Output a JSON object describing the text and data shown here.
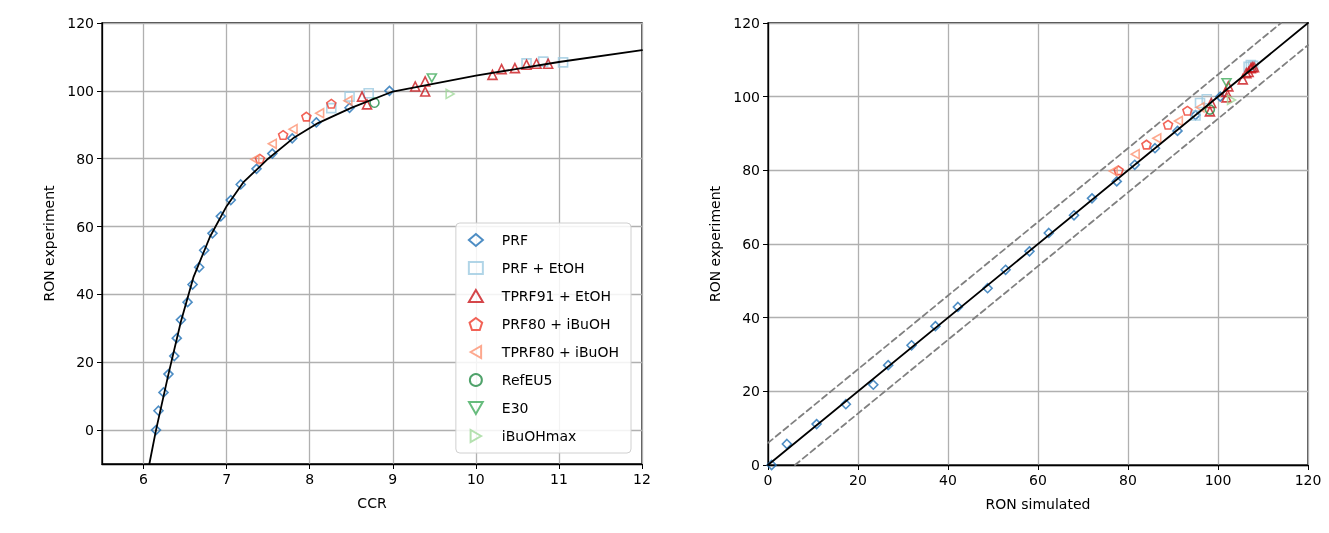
{
  "chart_data": [
    {
      "type": "scatter",
      "xlabel": "CCR",
      "ylabel": "RON experiment",
      "xlim": [
        5.5,
        12
      ],
      "xticks": [
        6,
        7,
        8,
        9,
        10,
        11,
        12
      ],
      "ylim": [
        -10,
        120
      ],
      "yticks": [
        0,
        20,
        40,
        60,
        80,
        100,
        120
      ],
      "grid": true,
      "legend": "bottom right",
      "series": [
        {
          "type": "line",
          "x": [
            6.07,
            6.15,
            6.3,
            6.45,
            6.6,
            6.8,
            7.0,
            7.2,
            7.5,
            7.8,
            8.1,
            8.5,
            9,
            10,
            11,
            12
          ],
          "values": [
            -10,
            0,
            16.5,
            32,
            45,
            57,
            66,
            73,
            80,
            86,
            90.5,
            95,
            99.8,
            104.5,
            108.5,
            112
          ],
          "color": "#000000",
          "marker": "none",
          "line_style": "solid"
        },
        {
          "name": "PRF",
          "color": "#2171b5",
          "marker": "diamond",
          "x": [
            6.15,
            6.18,
            6.24,
            6.3,
            6.37,
            6.4,
            6.45,
            6.53,
            6.59,
            6.67,
            6.73,
            6.83,
            6.93,
            7.05,
            7.17,
            7.36,
            7.55,
            7.79,
            8.08,
            8.48,
            8.96
          ],
          "values": [
            0,
            5.7,
            11.1,
            16.5,
            21.8,
            27.1,
            32.5,
            37.7,
            42.9,
            48,
            53,
            58,
            63,
            67.8,
            72.4,
            77,
            81.5,
            86,
            90.7,
            95,
            100
          ]
        },
        {
          "name": "PRF + EtOH",
          "color": "#9ecae1",
          "marker": "square",
          "x": [
            8.26,
            8.48,
            8.71,
            10.61,
            10.81,
            11.05
          ],
          "values": [
            94.9,
            98.3,
            99.3,
            108.1,
            108.6,
            108.4
          ]
        },
        {
          "name": "TPRF91 + EtOH",
          "color": "#cb181d",
          "marker": "triangle",
          "x": [
            8.63,
            8.69,
            9.27,
            9.39,
            9.39,
            10.2,
            10.31,
            10.47,
            10.61,
            10.73,
            10.87
          ],
          "values": [
            98.3,
            96,
            101.3,
            102.8,
            99.8,
            104.7,
            106.4,
            106.7,
            107.7,
            108,
            108
          ]
        },
        {
          "name": "PRF80 + iBuOH",
          "color": "#ef3b2c",
          "x": [
            7.4,
            7.68,
            7.96,
            8.26
          ],
          "values": [
            80,
            87,
            92.4,
            96.2
          ]
        },
        {
          "name": "TPRF80 + iBuOH",
          "color": "#fc9272",
          "marker": "triangle-left",
          "x": [
            7.34,
            7.55,
            7.8,
            8.12,
            8.46
          ],
          "values": [
            79.8,
            84.4,
            88.7,
            93.4,
            97.1
          ]
        },
        {
          "name": "RefEU5",
          "color": "#238b45",
          "marker": "circle",
          "x": [
            8.78
          ],
          "values": [
            96.5
          ]
        },
        {
          "name": "E30",
          "color": "#41ab5d",
          "marker": "triangle-down",
          "x": [
            9.47
          ],
          "values": [
            103.8
          ]
        },
        {
          "name": "iBuOHmax",
          "color": "#a1d99b",
          "marker": "triangle-right",
          "x": [
            9.69
          ],
          "values": [
            99.1
          ]
        }
      ]
    },
    {
      "type": "scatter",
      "xlabel": "RON simulated",
      "ylabel": "RON experiment",
      "xlim": [
        0,
        120
      ],
      "xticks": [
        0,
        20,
        40,
        60,
        80,
        100,
        120
      ],
      "ylim": [
        0,
        120
      ],
      "yticks": [
        0,
        20,
        40,
        60,
        80,
        100,
        120
      ],
      "grid": true,
      "series": [
        {
          "type": "line",
          "x": [
            0,
            120
          ],
          "values": [
            0,
            120
          ],
          "color": "#000000",
          "marker": "none",
          "line_style": "solid"
        },
        {
          "type": "line",
          "x": [
            0,
            114
          ],
          "values": [
            6,
            120
          ],
          "color": "#808080",
          "marker": "none",
          "line_style": "dashed"
        },
        {
          "type": "line",
          "x": [
            6,
            120
          ],
          "values": [
            0,
            114
          ],
          "color": "#808080",
          "marker": "none",
          "line_style": "dashed"
        },
        {
          "color": "#2171b5",
          "marker": "diamond",
          "x": [
            0.8,
            4.2,
            10.8,
            17.3,
            23.4,
            26.7,
            31.9,
            37.2,
            42.2,
            48.8,
            52.8,
            58.1,
            62.4,
            68,
            72,
            77.5,
            81.5,
            86,
            91,
            95,
            100.5
          ],
          "values": [
            0,
            5.7,
            11.1,
            16.5,
            21.8,
            27.1,
            32.5,
            37.7,
            42.9,
            48,
            53,
            58,
            63,
            67.8,
            72.4,
            77,
            81.5,
            86,
            90.7,
            95,
            100
          ]
        },
        {
          "color": "#9ecae1",
          "marker": "square",
          "x": [
            95,
            96,
            97.5,
            106.8,
            107.3,
            107.8
          ],
          "values": [
            94.9,
            98.3,
            99.3,
            108.1,
            108.6,
            108.4
          ]
        },
        {
          "color": "#cb181d",
          "marker": "triangle",
          "x": [
            98.5,
            98.2,
            101.8,
            102.3,
            101.9,
            105.5,
            106.3,
            106.8,
            107.3,
            107.6,
            108
          ],
          "values": [
            98.3,
            96,
            101.3,
            102.8,
            99.8,
            104.7,
            106.4,
            106.7,
            107.7,
            108,
            108
          ]
        },
        {
          "color": "#ef3b2c",
          "x": [
            77.9,
            84.1,
            88.9,
            93.2
          ],
          "values": [
            80,
            87,
            92.4,
            96.2
          ]
        },
        {
          "color": "#fc9272",
          "marker": "triangle-left",
          "x": [
            76.7,
            81.6,
            86.4,
            91.2,
            96
          ],
          "values": [
            79.8,
            84.4,
            88.7,
            93.4,
            97.1
          ]
        },
        {
          "color": "#238b45",
          "marker": "circle",
          "x": [
            98.2
          ],
          "values": [
            96.5
          ]
        },
        {
          "color": "#41ab5d",
          "marker": "triangle-down",
          "x": [
            101.9
          ],
          "values": [
            103.8
          ]
        },
        {
          "color": "#a1d99b",
          "marker": "triangle-right",
          "x": [
            103
          ],
          "values": [
            99.1
          ]
        }
      ]
    }
  ]
}
